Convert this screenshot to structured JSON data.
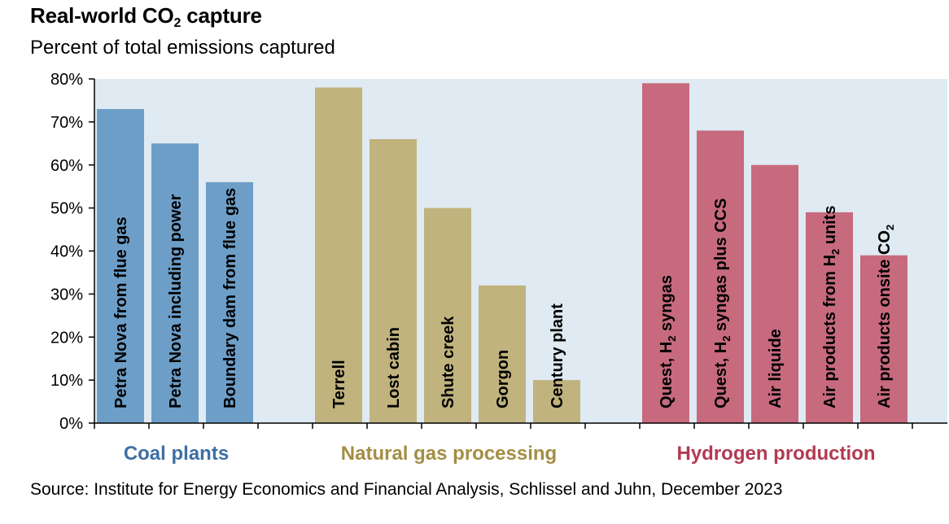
{
  "header": {
    "title_main": "Real-world CO",
    "title_sub": "2",
    "title_end": " capture",
    "subtitle": "Percent of total emissions captured"
  },
  "source": "Source: Institute for Energy Economics and Financial Analysis, Schlissel and Juhn, December 2023",
  "colors": {
    "plot_bg": "#dfeaf2",
    "axis": "#000000",
    "coal": "#6d9ec8",
    "coal_label": "#3e6fa4",
    "gas": "#c1b37d",
    "gas_label": "#a48e44",
    "hydrogen": "#c76a7e",
    "hydrogen_label": "#b13a50"
  },
  "chart_data": {
    "type": "bar",
    "title": "Real-world CO2 capture",
    "subtitle": "Percent of total emissions captured",
    "ylabel": "Percent of total emissions captured",
    "ylim": [
      0,
      80
    ],
    "yticks": [
      "0%",
      "10%",
      "20%",
      "30%",
      "40%",
      "50%",
      "60%",
      "70%",
      "80%"
    ],
    "groups": [
      {
        "name": "Coal plants",
        "color_key": "coal",
        "bars": [
          {
            "label": "Petra Nova from flue gas",
            "value": 73
          },
          {
            "label": "Petra Nova including power",
            "value": 65
          },
          {
            "label": "Boundary dam from flue gas",
            "value": 56
          }
        ]
      },
      {
        "name": "Natural gas processing",
        "color_key": "gas",
        "bars": [
          {
            "label": "Terrell",
            "value": 78
          },
          {
            "label": "Lost cabin",
            "value": 66
          },
          {
            "label": "Shute creek",
            "value": 50
          },
          {
            "label": "Gorgon",
            "value": 32
          },
          {
            "label": "Century plant",
            "value": 10
          }
        ]
      },
      {
        "name": "Hydrogen production",
        "color_key": "hydrogen",
        "bars": [
          {
            "label": "Quest, H2 syngas",
            "value": 79
          },
          {
            "label": "Quest, H2 syngas plus CCS",
            "value": 68
          },
          {
            "label": "Air liquide",
            "value": 60
          },
          {
            "label": "Air products from H2 units",
            "value": 49
          },
          {
            "label": "Air products onsite CO2",
            "value": 39
          }
        ]
      }
    ]
  }
}
